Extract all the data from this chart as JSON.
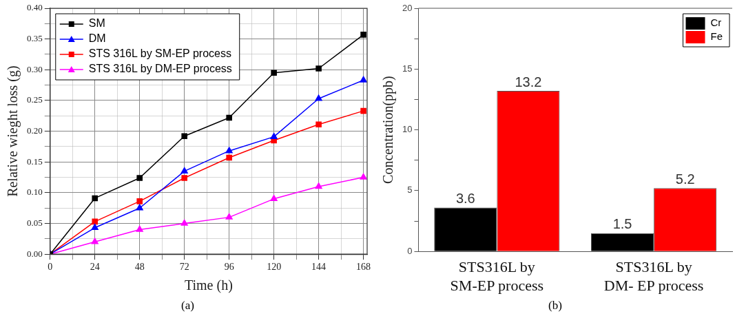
{
  "chart_data": [
    {
      "type": "line",
      "xlabel": "Time (h)",
      "ylabel": "Relative wieght loss (g)",
      "annotations": [
        "(a)"
      ],
      "x": [
        0,
        24,
        48,
        72,
        96,
        120,
        144,
        168
      ],
      "xlim": [
        0,
        170
      ],
      "xticks": [
        0,
        {
          "value": 12,
          "label": null
        },
        24,
        {
          "value": 36,
          "label": null
        },
        48,
        {
          "value": 60,
          "label": null
        },
        72,
        {
          "value": 84,
          "label": null
        },
        96,
        {
          "value": 108,
          "label": null
        },
        120,
        {
          "value": 132,
          "label": null
        },
        144,
        {
          "value": 156,
          "label": null
        },
        168
      ],
      "ylim": [
        0,
        0.4
      ],
      "yticks": [
        {
          "value": 0,
          "label": "0.00"
        },
        {
          "value": 0.025,
          "label": null
        },
        {
          "value": 0.05,
          "label": "0.05"
        },
        {
          "value": 0.075,
          "label": null
        },
        {
          "value": 0.1,
          "label": "0.10"
        },
        {
          "value": 0.125,
          "label": null
        },
        {
          "value": 0.15,
          "label": "0.15"
        },
        {
          "value": 0.175,
          "label": null
        },
        {
          "value": 0.2,
          "label": "0.20"
        },
        {
          "value": 0.225,
          "label": null
        },
        {
          "value": 0.25,
          "label": "0.25"
        },
        {
          "value": 0.275,
          "label": null
        },
        {
          "value": 0.3,
          "label": "0.30"
        },
        {
          "value": 0.325,
          "label": null
        },
        {
          "value": 0.35,
          "label": "0.35"
        },
        {
          "value": 0.375,
          "label": null
        },
        {
          "value": 0.4,
          "label": "0.40"
        }
      ],
      "grid": true,
      "legend": "top left",
      "series": [
        {
          "name": "SM",
          "color": "#000000",
          "marker": "square",
          "values": [
            0,
            0.091,
            0.124,
            0.192,
            0.222,
            0.295,
            0.302,
            0.357
          ]
        },
        {
          "name": "DM",
          "color": "#0000ff",
          "marker": "triangle",
          "values": [
            0,
            0.043,
            0.075,
            0.135,
            0.168,
            0.191,
            0.253,
            0.283
          ]
        },
        {
          "name": "STS 316L by SM-EP process",
          "color": "#ff0000",
          "marker": "square",
          "values": [
            0,
            0.053,
            0.086,
            0.124,
            0.157,
            0.185,
            0.211,
            0.233
          ]
        },
        {
          "name": "STS 316L by DM-EP process",
          "color": "#ff00ff",
          "marker": "triangle",
          "values": [
            0,
            0.02,
            0.04,
            0.05,
            0.06,
            0.09,
            0.11,
            0.125
          ]
        }
      ]
    },
    {
      "type": "bar",
      "ylabel": "Concentration(ppb)",
      "annotations": [
        "(b)"
      ],
      "categories": [
        "STS316L by\nSM-EP process",
        "STS316L by\nDM- EP process"
      ],
      "ylim": [
        0,
        20
      ],
      "yticks": [
        0,
        {
          "value": 2.5,
          "label": null
        },
        5,
        {
          "value": 7.5,
          "label": null
        },
        10,
        {
          "value": 12.5,
          "label": null
        },
        15,
        {
          "value": 17.5,
          "label": null
        },
        20
      ],
      "legend": "top right",
      "data_labels": true,
      "series": [
        {
          "name": "Cr",
          "color": "#000000",
          "values": [
            3.6,
            1.5
          ]
        },
        {
          "name": "Fe",
          "color": "#ff0000",
          "values": [
            13.2,
            5.2
          ]
        }
      ]
    }
  ]
}
